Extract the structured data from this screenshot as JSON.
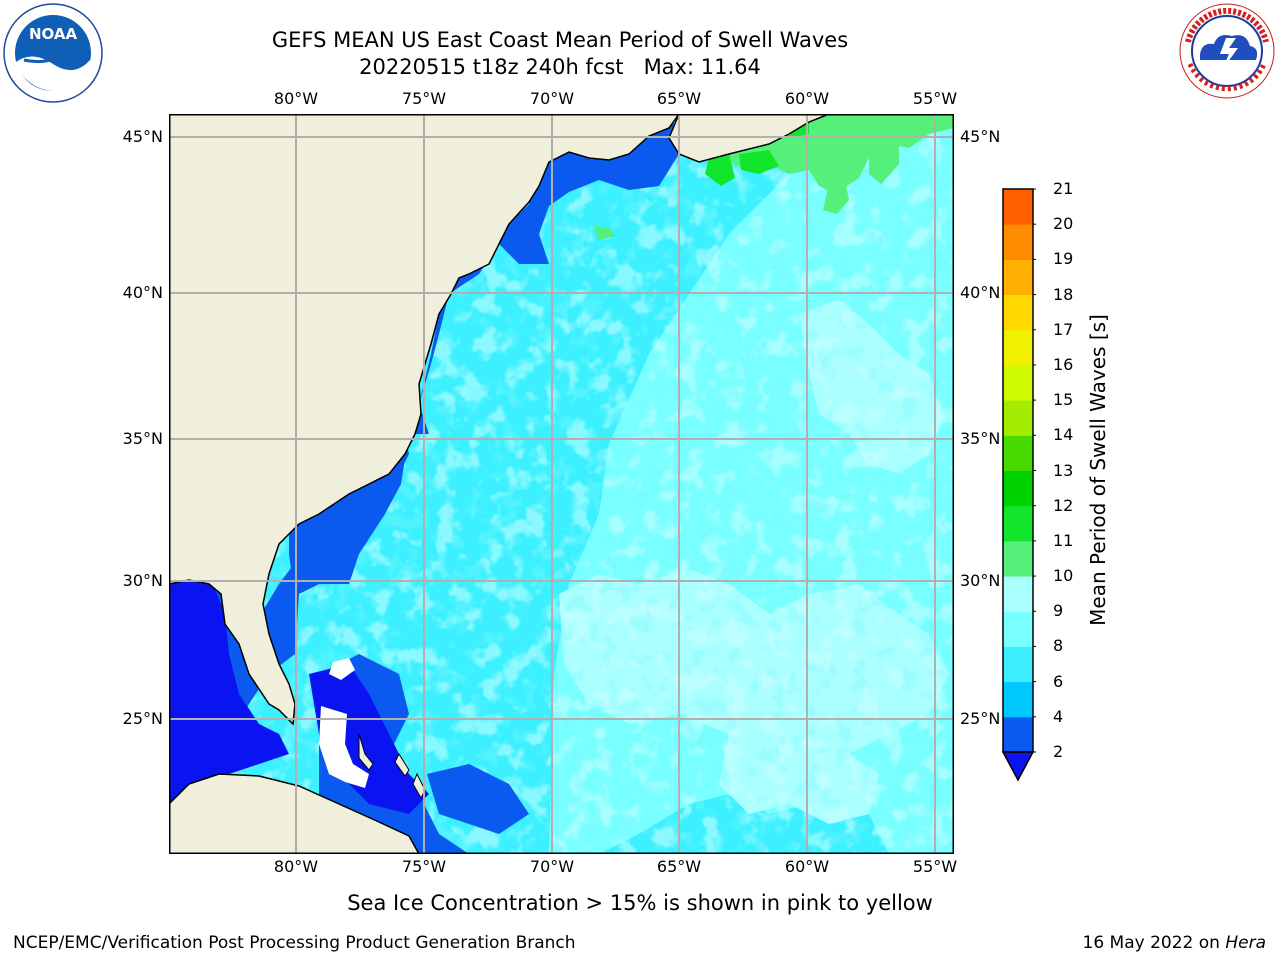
{
  "title": {
    "line1": "GEFS MEAN US East Coast Mean Period of Swell Waves",
    "line2": "20220515 t18z 240h fcst   Max: 11.64"
  },
  "logos": {
    "left": {
      "name": "noaa-logo",
      "text": "NOAA",
      "ring_text": "NATIONAL OCEANIC AND ATMOSPHERIC ADMINISTRATION · U.S. DEPARTMENT OF COMMERCE"
    },
    "right": {
      "name": "national-weather-service-logo",
      "ring_text": "NATIONAL WEATHER SERVICE"
    }
  },
  "map": {
    "longitude_labels": [
      "80°W",
      "75°W",
      "70°W",
      "65°W",
      "60°W",
      "55°W"
    ],
    "latitude_labels": [
      "45°N",
      "40°N",
      "35°N",
      "30°N",
      "25°N"
    ],
    "land_color": "#efefdc",
    "grid_color": "#b0b0b0"
  },
  "colorbar": {
    "label": "Mean Period of Swell Waves [s]",
    "ticks": [
      "2",
      "4",
      "6",
      "8",
      "9",
      "10",
      "11",
      "12",
      "13",
      "14",
      "15",
      "16",
      "17",
      "18",
      "19",
      "20",
      "21"
    ],
    "colors": [
      "#0a5af0",
      "#00c8ff",
      "#3cf0ff",
      "#78ffff",
      "#aaffff",
      "#55f07a",
      "#11e62d",
      "#00d100",
      "#47d900",
      "#a3eb00",
      "#cefa00",
      "#f0f000",
      "#ffd800",
      "#ffb000",
      "#ff8c00",
      "#ff6000",
      "#ff3000",
      "#ff0000"
    ],
    "extend_min_color": "#0a14f0"
  },
  "subtitle": "Sea Ice Concentration > 15% is shown in pink to yellow",
  "footer": {
    "left": "NCEP/EMC/Verification Post Processing Product Generation Branch",
    "right_prefix": "16 May 2022 on ",
    "right_host": "Hera"
  }
}
